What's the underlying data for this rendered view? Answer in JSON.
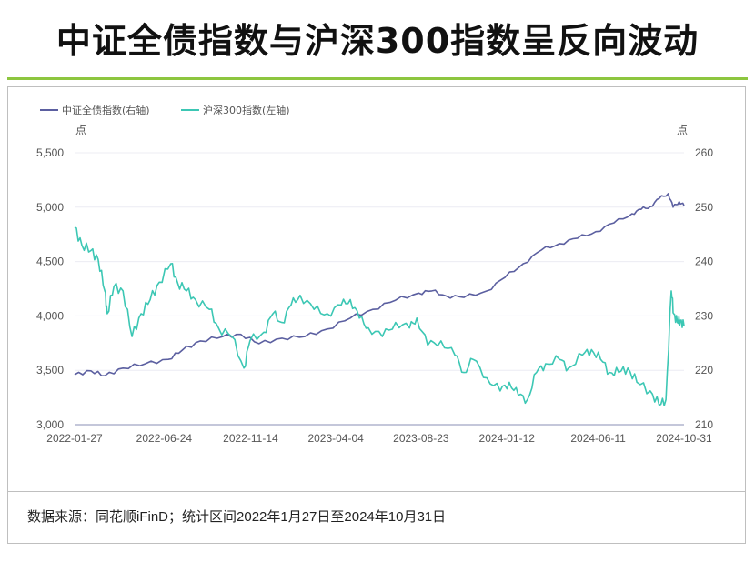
{
  "title": "中证全债指数与沪深300指数呈反向波动",
  "source": "数据来源：同花顺iFinD；统计区间2022年1月27日至2024年10月31日",
  "chart_data": {
    "type": "line",
    "x_unit": "days since 2022-01-27",
    "x_range": [
      0,
      1008
    ],
    "x_ticks": [
      {
        "day": 0,
        "label": "2022-01-27"
      },
      {
        "day": 148,
        "label": "2022-06-24"
      },
      {
        "day": 291,
        "label": "2022-11-14"
      },
      {
        "day": 432,
        "label": "2023-04-04"
      },
      {
        "day": 573,
        "label": "2023-08-23"
      },
      {
        "day": 715,
        "label": "2024-01-12"
      },
      {
        "day": 866,
        "label": "2024-06-11"
      },
      {
        "day": 1008,
        "label": "2024-10-31"
      }
    ],
    "left_axis": {
      "unit": "点",
      "ylim": [
        3000,
        5500
      ],
      "ticks": [
        "3,000",
        "3,500",
        "4,000",
        "4,500",
        "5,000",
        "5,500"
      ],
      "tick_values": [
        3000,
        3500,
        4000,
        4500,
        5000,
        5500
      ]
    },
    "right_axis": {
      "unit": "点",
      "ylim": [
        210,
        260
      ],
      "ticks": [
        "210",
        "220",
        "230",
        "240",
        "250",
        "260"
      ],
      "tick_values": [
        210,
        220,
        230,
        240,
        250,
        260
      ]
    },
    "grid": true,
    "legend_position": "top-left",
    "series": [
      {
        "name": "中证全债指数(右轴)",
        "axis": "right",
        "color": "#5b5fa0",
        "points": [
          [
            0,
            219.2
          ],
          [
            27,
            219.9
          ],
          [
            50,
            219.0
          ],
          [
            80,
            220.4
          ],
          [
            117,
            221.2
          ],
          [
            155,
            222.0
          ],
          [
            178,
            223.7
          ],
          [
            208,
            225.4
          ],
          [
            245,
            226.2
          ],
          [
            275,
            226.6
          ],
          [
            305,
            224.9
          ],
          [
            343,
            225.9
          ],
          [
            381,
            226.2
          ],
          [
            418,
            227.6
          ],
          [
            456,
            229.6
          ],
          [
            493,
            231.2
          ],
          [
            531,
            232.9
          ],
          [
            569,
            234.2
          ],
          [
            591,
            234.6
          ],
          [
            614,
            233.7
          ],
          [
            644,
            233.4
          ],
          [
            682,
            234.6
          ],
          [
            712,
            237.1
          ],
          [
            742,
            239.6
          ],
          [
            772,
            242.1
          ],
          [
            802,
            243.3
          ],
          [
            832,
            244.3
          ],
          [
            862,
            245.5
          ],
          [
            892,
            247.1
          ],
          [
            922,
            248.8
          ],
          [
            937,
            249.6
          ],
          [
            952,
            250.1
          ],
          [
            967,
            251.6
          ],
          [
            982,
            252.5
          ],
          [
            990,
            250.0
          ],
          [
            1000,
            251.0
          ],
          [
            1008,
            250.3
          ]
        ]
      },
      {
        "name": "沪深300指数(左轴)",
        "axis": "left",
        "color": "#3cc7b4",
        "points": [
          [
            0,
            4815
          ],
          [
            12,
            4650
          ],
          [
            27,
            4600
          ],
          [
            39,
            4520
          ],
          [
            50,
            4230
          ],
          [
            54,
            4020
          ],
          [
            65,
            4270
          ],
          [
            80,
            4230
          ],
          [
            95,
            3810
          ],
          [
            110,
            4020
          ],
          [
            125,
            4150
          ],
          [
            140,
            4310
          ],
          [
            159,
            4480
          ],
          [
            170,
            4310
          ],
          [
            185,
            4230
          ],
          [
            200,
            4150
          ],
          [
            223,
            4060
          ],
          [
            238,
            3890
          ],
          [
            260,
            3810
          ],
          [
            280,
            3520
          ],
          [
            290,
            3770
          ],
          [
            313,
            3850
          ],
          [
            328,
            4020
          ],
          [
            343,
            3940
          ],
          [
            358,
            4100
          ],
          [
            373,
            4190
          ],
          [
            396,
            4060
          ],
          [
            418,
            4020
          ],
          [
            441,
            4100
          ],
          [
            456,
            4150
          ],
          [
            471,
            3980
          ],
          [
            486,
            3890
          ],
          [
            509,
            3810
          ],
          [
            531,
            3940
          ],
          [
            554,
            3890
          ],
          [
            566,
            3980
          ],
          [
            584,
            3730
          ],
          [
            606,
            3770
          ],
          [
            629,
            3640
          ],
          [
            644,
            3480
          ],
          [
            659,
            3600
          ],
          [
            682,
            3430
          ],
          [
            704,
            3310
          ],
          [
            719,
            3390
          ],
          [
            734,
            3270
          ],
          [
            749,
            3230
          ],
          [
            764,
            3480
          ],
          [
            779,
            3560
          ],
          [
            802,
            3600
          ],
          [
            817,
            3520
          ],
          [
            840,
            3640
          ],
          [
            855,
            3690
          ],
          [
            870,
            3600
          ],
          [
            885,
            3480
          ],
          [
            900,
            3480
          ],
          [
            915,
            3520
          ],
          [
            930,
            3390
          ],
          [
            952,
            3310
          ],
          [
            967,
            3180
          ],
          [
            978,
            3230
          ],
          [
            987,
            4230
          ],
          [
            991,
            4020
          ],
          [
            997,
            3940
          ],
          [
            1002,
            3960
          ],
          [
            1008,
            3910
          ]
        ]
      }
    ]
  }
}
